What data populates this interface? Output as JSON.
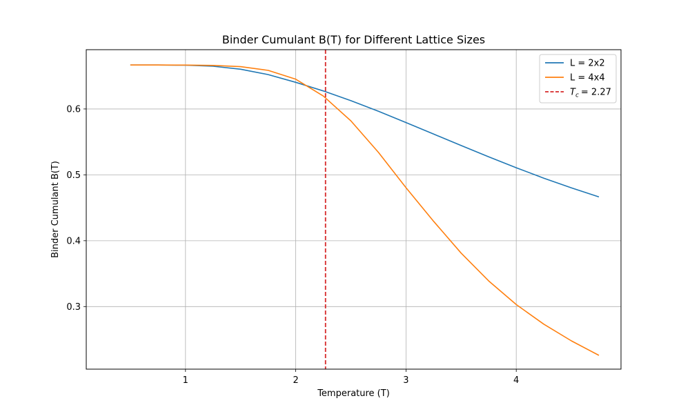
{
  "chart_data": {
    "type": "line",
    "title": "Binder Cumulant B(T) for Different Lattice Sizes",
    "xlabel": "Temperature (T)",
    "ylabel": "Binder Cumulant B(T)",
    "xlim": [
      0.1,
      4.95
    ],
    "ylim": [
      0.205,
      0.69
    ],
    "xticks": [
      1,
      2,
      3,
      4
    ],
    "yticks": [
      0.3,
      0.4,
      0.5,
      0.6
    ],
    "grid": true,
    "legend_position": "top-right",
    "series": [
      {
        "name": "L = 2x2",
        "color": "#1f77b4",
        "x": [
          0.5,
          0.75,
          1.0,
          1.25,
          1.5,
          1.75,
          2.0,
          2.25,
          2.5,
          2.75,
          3.0,
          3.25,
          3.5,
          3.75,
          4.0,
          4.25,
          4.5,
          4.75
        ],
        "y": [
          0.6667,
          0.6667,
          0.6664,
          0.6649,
          0.6604,
          0.6522,
          0.6405,
          0.6274,
          0.6126,
          0.5965,
          0.5794,
          0.5619,
          0.5445,
          0.5274,
          0.5108,
          0.495,
          0.4802,
          0.4665
        ]
      },
      {
        "name": "L = 4x4",
        "color": "#ff7f0e",
        "x": [
          0.5,
          0.75,
          1.0,
          1.25,
          1.5,
          1.75,
          2.0,
          2.25,
          2.5,
          2.75,
          3.0,
          3.25,
          3.5,
          3.75,
          4.0,
          4.25,
          4.5,
          4.75
        ],
        "y": [
          0.6667,
          0.6667,
          0.6666,
          0.6661,
          0.6642,
          0.6586,
          0.6452,
          0.6196,
          0.582,
          0.534,
          0.4805,
          0.4295,
          0.3812,
          0.339,
          0.303,
          0.2733,
          0.248,
          0.226
        ]
      }
    ],
    "vline": {
      "x": 2.27,
      "color": "#d62728",
      "label_symbol": "T",
      "label_subscript": "c",
      "label_value": "= 2.27"
    }
  }
}
